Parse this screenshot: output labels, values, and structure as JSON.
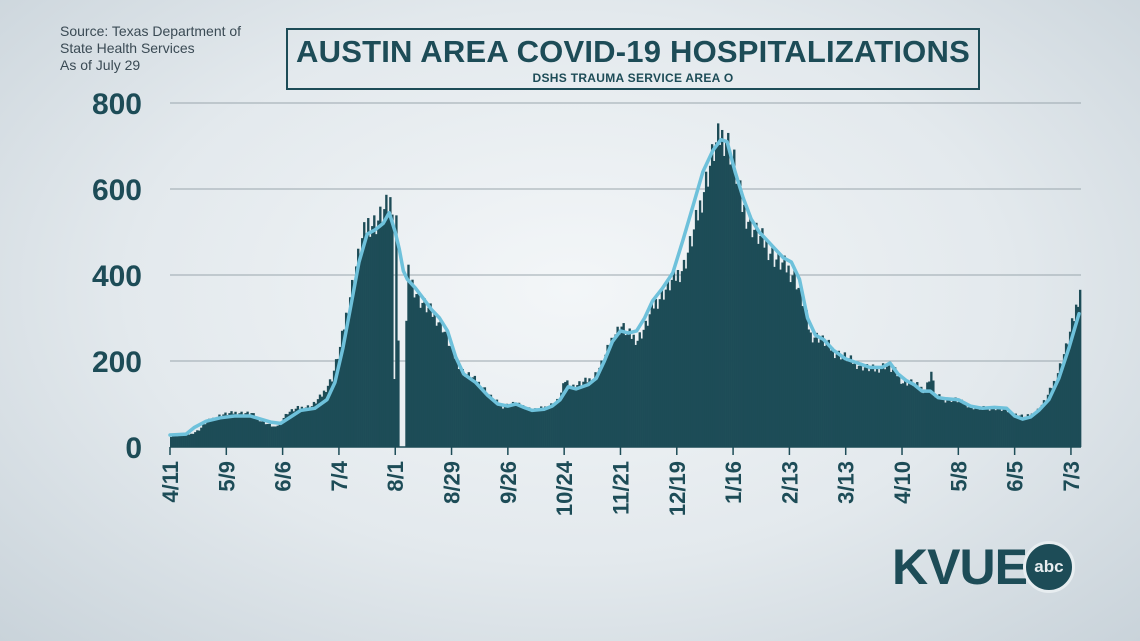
{
  "source_lines": [
    "Source: Texas Department of",
    "State Health Services",
    "As of July 29"
  ],
  "logo": {
    "text": "KVUE",
    "badge": "abc"
  },
  "colors": {
    "bar": "#1d4c57",
    "line": "#6ec1db",
    "grid": "#9aa6ad",
    "text": "#1d4c57"
  },
  "chart_data": {
    "type": "bar",
    "title": "AUSTIN AREA COVID-19 HOSPITALIZATIONS",
    "subtitle": "DSHS TRAUMA SERVICE AREA O",
    "xlabel": "",
    "ylabel": "",
    "ylim": [
      0,
      800
    ],
    "yticks": [
      0,
      200,
      400,
      600,
      800
    ],
    "grid": true,
    "x_tick_labels": [
      "4/11",
      "5/9",
      "6/6",
      "7/4",
      "8/1",
      "8/29",
      "9/26",
      "10/24",
      "11/21",
      "12/19",
      "1/16",
      "2/13",
      "3/13",
      "4/10",
      "5/8",
      "6/5",
      "7/3"
    ],
    "daily_points": [
      [
        0,
        25
      ],
      [
        10,
        30
      ],
      [
        14,
        40
      ],
      [
        18,
        60
      ],
      [
        25,
        75
      ],
      [
        32,
        80
      ],
      [
        40,
        78
      ],
      [
        45,
        60
      ],
      [
        52,
        45
      ],
      [
        58,
        80
      ],
      [
        63,
        90
      ],
      [
        70,
        95
      ],
      [
        75,
        120
      ],
      [
        80,
        160
      ],
      [
        84,
        230
      ],
      [
        88,
        330
      ],
      [
        92,
        420
      ],
      [
        95,
        480
      ],
      [
        98,
        520
      ],
      [
        102,
        520
      ],
      [
        105,
        540
      ],
      [
        108,
        560
      ],
      [
        110,
        575
      ],
      [
        111,
        160
      ],
      [
        112,
        520
      ],
      [
        114,
        0
      ],
      [
        116,
        0
      ],
      [
        117,
        290
      ],
      [
        118,
        400
      ],
      [
        120,
        380
      ],
      [
        124,
        340
      ],
      [
        128,
        320
      ],
      [
        132,
        300
      ],
      [
        135,
        280
      ],
      [
        140,
        220
      ],
      [
        145,
        175
      ],
      [
        150,
        160
      ],
      [
        155,
        140
      ],
      [
        160,
        110
      ],
      [
        165,
        95
      ],
      [
        170,
        100
      ],
      [
        175,
        95
      ],
      [
        180,
        85
      ],
      [
        185,
        90
      ],
      [
        190,
        100
      ],
      [
        193,
        110
      ],
      [
        196,
        155
      ],
      [
        200,
        140
      ],
      [
        205,
        150
      ],
      [
        210,
        160
      ],
      [
        215,
        200
      ],
      [
        220,
        260
      ],
      [
        224,
        280
      ],
      [
        228,
        260
      ],
      [
        232,
        250
      ],
      [
        236,
        280
      ],
      [
        240,
        330
      ],
      [
        245,
        360
      ],
      [
        250,
        390
      ],
      [
        255,
        420
      ],
      [
        260,
        500
      ],
      [
        265,
        600
      ],
      [
        270,
        690
      ],
      [
        273,
        720
      ],
      [
        276,
        720
      ],
      [
        280,
        660
      ],
      [
        284,
        560
      ],
      [
        288,
        520
      ],
      [
        292,
        490
      ],
      [
        296,
        470
      ],
      [
        300,
        440
      ],
      [
        305,
        420
      ],
      [
        310,
        400
      ],
      [
        314,
        340
      ],
      [
        318,
        260
      ],
      [
        322,
        255
      ],
      [
        326,
        240
      ],
      [
        330,
        220
      ],
      [
        335,
        210
      ],
      [
        340,
        195
      ],
      [
        345,
        185
      ],
      [
        350,
        180
      ],
      [
        355,
        190
      ],
      [
        360,
        175
      ],
      [
        364,
        150
      ],
      [
        368,
        150
      ],
      [
        372,
        140
      ],
      [
        375,
        130
      ],
      [
        378,
        175
      ],
      [
        380,
        120
      ],
      [
        385,
        110
      ],
      [
        390,
        110
      ],
      [
        395,
        100
      ],
      [
        400,
        90
      ],
      [
        405,
        90
      ],
      [
        410,
        90
      ],
      [
        415,
        85
      ],
      [
        420,
        75
      ],
      [
        425,
        70
      ],
      [
        430,
        80
      ],
      [
        435,
        110
      ],
      [
        440,
        160
      ],
      [
        445,
        230
      ],
      [
        449,
        300
      ],
      [
        452,
        370
      ]
    ],
    "rolling_average": [
      [
        0,
        28
      ],
      [
        8,
        30
      ],
      [
        12,
        45
      ],
      [
        18,
        60
      ],
      [
        25,
        68
      ],
      [
        32,
        72
      ],
      [
        40,
        72
      ],
      [
        45,
        65
      ],
      [
        50,
        58
      ],
      [
        55,
        55
      ],
      [
        60,
        70
      ],
      [
        65,
        85
      ],
      [
        72,
        90
      ],
      [
        78,
        110
      ],
      [
        82,
        150
      ],
      [
        86,
        230
      ],
      [
        90,
        330
      ],
      [
        94,
        430
      ],
      [
        98,
        495
      ],
      [
        102,
        505
      ],
      [
        106,
        520
      ],
      [
        109,
        545
      ],
      [
        112,
        500
      ],
      [
        114,
        460
      ],
      [
        116,
        410
      ],
      [
        118,
        390
      ],
      [
        122,
        370
      ],
      [
        126,
        345
      ],
      [
        130,
        320
      ],
      [
        134,
        300
      ],
      [
        138,
        270
      ],
      [
        142,
        210
      ],
      [
        146,
        170
      ],
      [
        152,
        150
      ],
      [
        158,
        120
      ],
      [
        163,
        100
      ],
      [
        168,
        95
      ],
      [
        172,
        100
      ],
      [
        176,
        92
      ],
      [
        180,
        85
      ],
      [
        186,
        88
      ],
      [
        190,
        95
      ],
      [
        194,
        110
      ],
      [
        198,
        140
      ],
      [
        202,
        135
      ],
      [
        208,
        145
      ],
      [
        212,
        160
      ],
      [
        216,
        200
      ],
      [
        220,
        245
      ],
      [
        224,
        270
      ],
      [
        228,
        265
      ],
      [
        232,
        270
      ],
      [
        236,
        300
      ],
      [
        240,
        340
      ],
      [
        245,
        370
      ],
      [
        250,
        405
      ],
      [
        255,
        480
      ],
      [
        260,
        560
      ],
      [
        265,
        640
      ],
      [
        270,
        690
      ],
      [
        274,
        715
      ],
      [
        277,
        710
      ],
      [
        281,
        640
      ],
      [
        285,
        580
      ],
      [
        289,
        530
      ],
      [
        293,
        500
      ],
      [
        297,
        480
      ],
      [
        301,
        460
      ],
      [
        305,
        440
      ],
      [
        309,
        430
      ],
      [
        313,
        390
      ],
      [
        317,
        300
      ],
      [
        321,
        260
      ],
      [
        325,
        250
      ],
      [
        330,
        225
      ],
      [
        336,
        205
      ],
      [
        342,
        195
      ],
      [
        348,
        185
      ],
      [
        354,
        185
      ],
      [
        358,
        195
      ],
      [
        362,
        170
      ],
      [
        366,
        155
      ],
      [
        370,
        145
      ],
      [
        374,
        130
      ],
      [
        378,
        130
      ],
      [
        382,
        115
      ],
      [
        386,
        112
      ],
      [
        392,
        110
      ],
      [
        398,
        95
      ],
      [
        404,
        90
      ],
      [
        410,
        92
      ],
      [
        416,
        90
      ],
      [
        420,
        72
      ],
      [
        424,
        65
      ],
      [
        428,
        70
      ],
      [
        432,
        85
      ],
      [
        437,
        110
      ],
      [
        442,
        160
      ],
      [
        447,
        230
      ],
      [
        452,
        310
      ]
    ]
  }
}
